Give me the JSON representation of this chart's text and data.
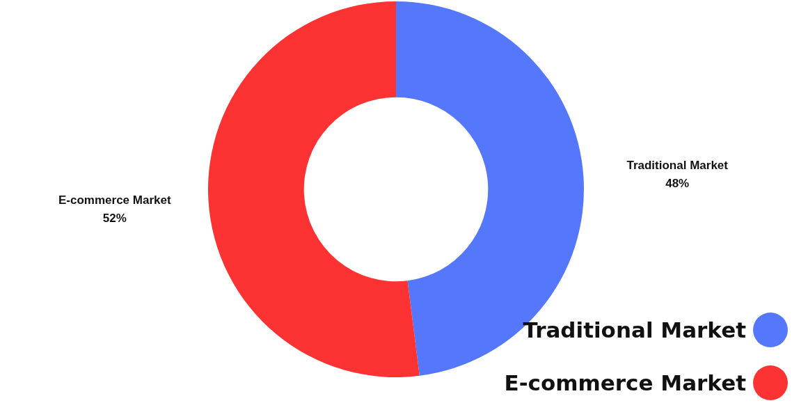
{
  "chart_data": {
    "type": "donut",
    "categories": [
      "Traditional Market",
      "E-commerce Market"
    ],
    "values": [
      48,
      52
    ],
    "colors": [
      "#5577fb",
      "#fd3232"
    ],
    "value_labels": [
      "48%",
      "52%"
    ],
    "legend": "bottom right"
  }
}
